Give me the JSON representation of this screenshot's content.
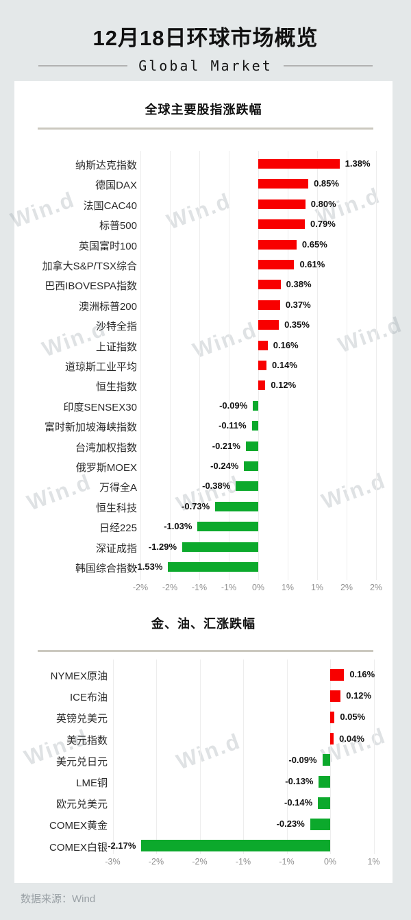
{
  "page": {
    "background_color": "#e4e8e9",
    "watermark_text": "Win.d"
  },
  "header": {
    "title": "12月18日环球市场概览",
    "subtitle": "Global Market"
  },
  "footer": {
    "source": "数据来源：Wind"
  },
  "colors": {
    "up": "#f80000",
    "down": "#0ca92c",
    "divider": "#cbc8bf",
    "gridline": "#ededed",
    "axis_text": "#8f8f8f",
    "label_text": "#2b2b2b",
    "value_text": "#111111"
  },
  "chart_data": [
    {
      "type": "bar",
      "orientation": "horizontal",
      "title": "全球主要股指涨跌幅",
      "unit": "%",
      "grid": true,
      "xlim": [
        -2.25,
        2.25
      ],
      "categories": [
        "纳斯达克指数",
        "德国DAX",
        "法国CAC40",
        "标普500",
        "英国富时100",
        "加拿大S&P/TSX综合",
        "巴西IBOVESPA指数",
        "澳洲标普200",
        "沙特全指",
        "上证指数",
        "道琼斯工业平均",
        "恒生指数",
        "印度SENSEX30",
        "富时新加坡海峡指数",
        "台湾加权指数",
        "俄罗斯MOEX",
        "万得全A",
        "恒生科技",
        "日经225",
        "深证成指",
        "韩国综合指数"
      ],
      "values": [
        1.38,
        0.85,
        0.8,
        0.79,
        0.65,
        0.61,
        0.38,
        0.37,
        0.35,
        0.16,
        0.14,
        0.12,
        -0.09,
        -0.11,
        -0.21,
        -0.24,
        -0.38,
        -0.73,
        -1.03,
        -1.29,
        -1.53
      ],
      "value_labels": [
        "1.38%",
        "0.85%",
        "0.80%",
        "0.79%",
        "0.65%",
        "0.61%",
        "0.38%",
        "0.37%",
        "0.35%",
        "0.16%",
        "0.14%",
        "0.12%",
        "-0.09%",
        "-0.11%",
        "-0.21%",
        "-0.24%",
        "-0.38%",
        "-0.73%",
        "-1.03%",
        "-1.29%",
        "-1.53%"
      ],
      "x_ticks": [
        {
          "value": -2.0,
          "label": "-2%"
        },
        {
          "value": -1.5,
          "label": "-2%"
        },
        {
          "value": -1.0,
          "label": "-1%"
        },
        {
          "value": -0.5,
          "label": "-1%"
        },
        {
          "value": 0.0,
          "label": "0%"
        },
        {
          "value": 0.5,
          "label": "1%"
        },
        {
          "value": 1.0,
          "label": "1%"
        },
        {
          "value": 1.5,
          "label": "2%"
        },
        {
          "value": 2.0,
          "label": "2%"
        }
      ]
    },
    {
      "type": "bar",
      "orientation": "horizontal",
      "title": "金、油、汇涨跌幅",
      "unit": "%",
      "grid": true,
      "xlim": [
        -2.75,
        0.75
      ],
      "categories": [
        "NYMEX原油",
        "ICE布油",
        "英镑兑美元",
        "美元指数",
        "美元兑日元",
        "LME铜",
        "欧元兑美元",
        "COMEX黄金",
        "COMEX白银"
      ],
      "values": [
        0.16,
        0.12,
        0.05,
        0.04,
        -0.09,
        -0.13,
        -0.14,
        -0.23,
        -2.17
      ],
      "value_labels": [
        "0.16%",
        "0.12%",
        "0.05%",
        "0.04%",
        "-0.09%",
        "-0.13%",
        "-0.14%",
        "-0.23%",
        "-2.17%"
      ],
      "x_ticks": [
        {
          "value": -2.5,
          "label": "-3%"
        },
        {
          "value": -2.0,
          "label": "-2%"
        },
        {
          "value": -1.5,
          "label": "-2%"
        },
        {
          "value": -1.0,
          "label": "-1%"
        },
        {
          "value": -0.5,
          "label": "-1%"
        },
        {
          "value": 0.0,
          "label": "0%"
        },
        {
          "value": 0.5,
          "label": "1%"
        }
      ]
    }
  ]
}
